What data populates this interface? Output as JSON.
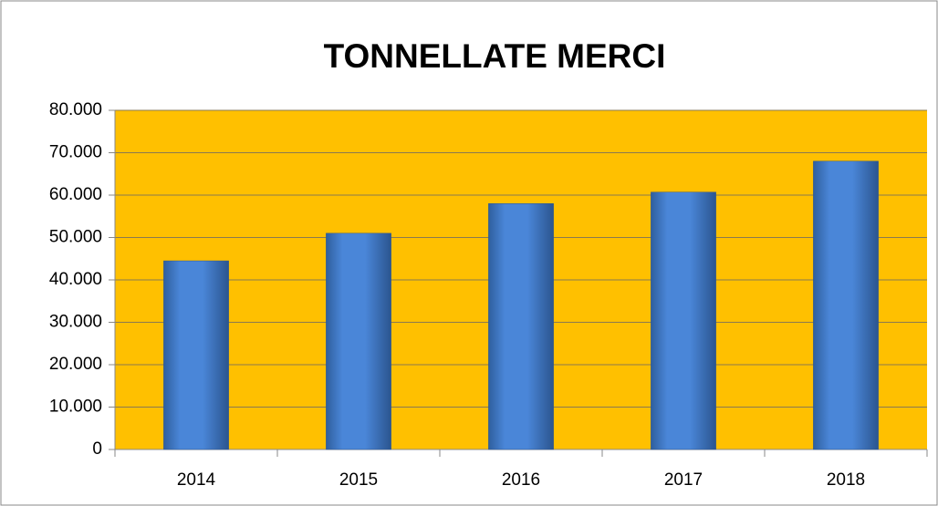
{
  "chart_data": {
    "type": "bar",
    "title": "TONNELLATE MERCI",
    "categories": [
      "2014",
      "2015",
      "2016",
      "2017",
      "2018"
    ],
    "values": [
      44500,
      51000,
      58000,
      60700,
      68000
    ],
    "color": "#4a86d8",
    "plot_background": "#ffc000",
    "ylim": [
      0,
      80000
    ],
    "yticks": [
      0,
      {
        "value": 10000,
        "label": "10.000"
      },
      {
        "value": 20000,
        "label": "20.000"
      },
      {
        "value": 30000,
        "label": "30.000"
      },
      {
        "value": 40000,
        "label": "40.000"
      },
      {
        "value": 50000,
        "label": "50.000"
      },
      {
        "value": 60000,
        "label": "60.000"
      },
      {
        "value": 70000,
        "label": "70.000"
      },
      {
        "value": 80000,
        "label": "80.000"
      }
    ],
    "grid": true
  }
}
